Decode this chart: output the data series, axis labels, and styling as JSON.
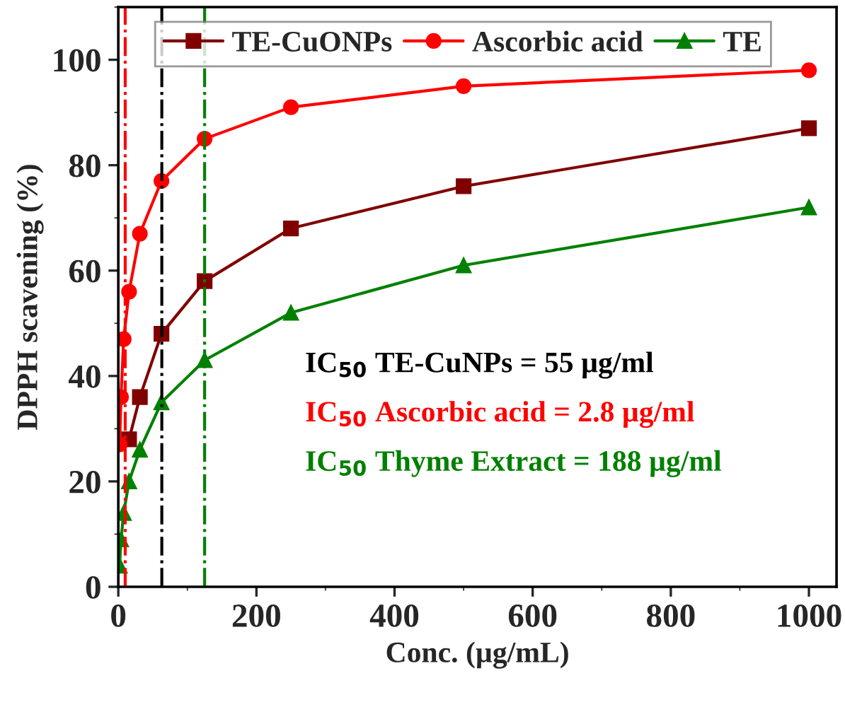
{
  "chart_data": {
    "type": "line",
    "xlabel": "Conc. (µg/mL)",
    "ylabel": "DPPH scavening (%)",
    "xlim": [
      0,
      1040
    ],
    "xticks": [
      0,
      200,
      400,
      600,
      800,
      1000
    ],
    "ylim": [
      0,
      110
    ],
    "yticks": [
      0,
      20,
      40,
      60,
      80,
      100
    ],
    "grid": false,
    "legend": "top",
    "series": [
      {
        "name": "TE-CuONPs",
        "color": "#800000",
        "marker": "square",
        "x": [
          15.6,
          31.25,
          62.5,
          125,
          250,
          500,
          1000
        ],
        "values": [
          28,
          36,
          48,
          58,
          68,
          76,
          87
        ]
      },
      {
        "name": "Ascorbic acid",
        "color": "#ff0000",
        "marker": "circle",
        "x": [
          1.95,
          3.9,
          7.8,
          15.6,
          31.25,
          62.5,
          125,
          250,
          500,
          1000
        ],
        "values": [
          27,
          36,
          47,
          56,
          67,
          77,
          85,
          91,
          95,
          98
        ]
      },
      {
        "name": "TE",
        "color": "#008000",
        "marker": "triangle",
        "x": [
          1.95,
          3.9,
          7.8,
          15.6,
          31.25,
          62.5,
          125,
          250,
          500,
          1000
        ],
        "values": [
          4,
          9,
          14,
          20,
          26,
          35,
          43,
          52,
          61,
          72
        ]
      }
    ],
    "ref_lines": [
      {
        "axis": "x",
        "value": 63,
        "color": "#000000",
        "line_style": "dashed"
      },
      {
        "axis": "x",
        "value": 10,
        "color": "#ff0000",
        "line_style": "dashed"
      },
      {
        "axis": "x",
        "value": 125,
        "color": "#008000",
        "line_style": "dashed"
      }
    ],
    "annotations": [
      "IC$_{50}$ TE-CuNPs = 55 µg/ml",
      "IC$_{50}$ Ascorbic acid = 2.8 µg/ml",
      "IC$_{50}$ Thyme Extract = 188 µg/ml"
    ]
  }
}
